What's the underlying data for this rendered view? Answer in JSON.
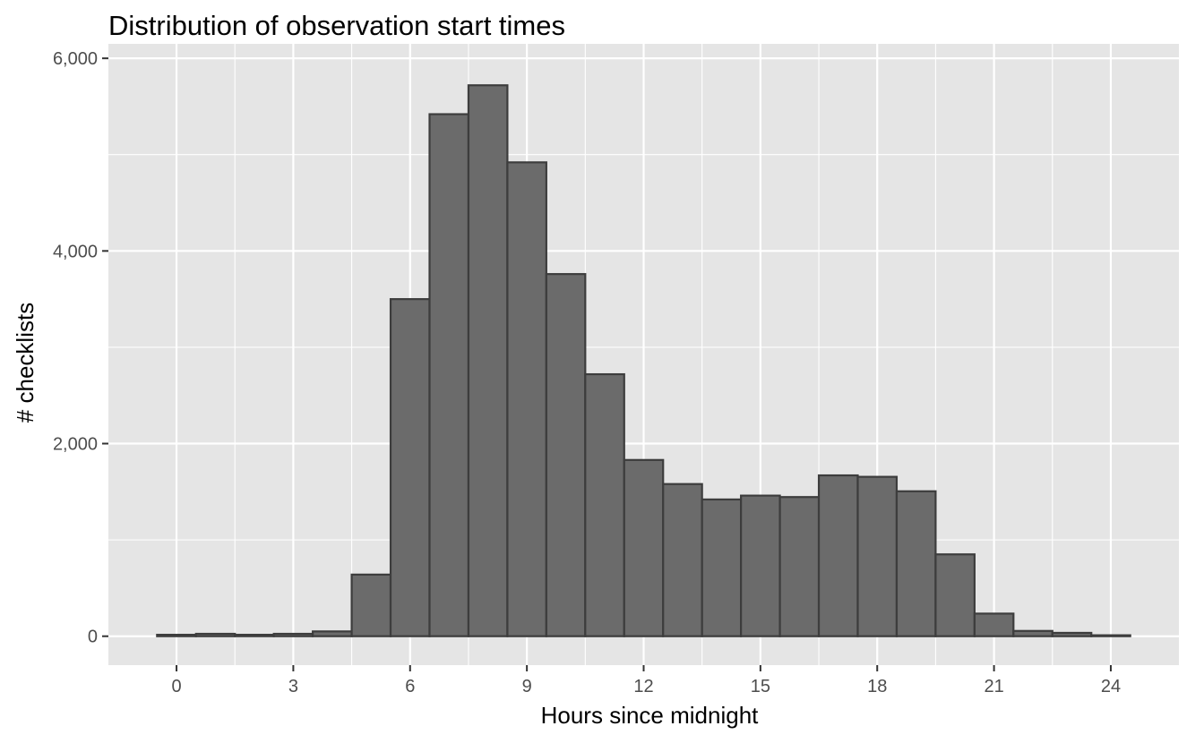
{
  "chart_data": {
    "type": "bar",
    "title": "Distribution of observation start times",
    "xlabel": "Hours since midnight",
    "ylabel": "# checklists",
    "x": [
      0,
      1,
      2,
      3,
      4,
      5,
      6,
      7,
      8,
      9,
      10,
      11,
      12,
      13,
      14,
      15,
      16,
      17,
      18,
      19,
      20,
      21,
      22,
      23,
      24
    ],
    "values": [
      15,
      25,
      15,
      25,
      50,
      640,
      3500,
      5420,
      5720,
      4920,
      3760,
      2720,
      1830,
      1580,
      1420,
      1460,
      1445,
      1670,
      1655,
      1505,
      850,
      235,
      55,
      35,
      10
    ],
    "bin_width": 1,
    "xlim": [
      -1.75,
      25.75
    ],
    "ylim": [
      -300,
      6150
    ],
    "x_ticks": [
      "0",
      "3",
      "6",
      "9",
      "12",
      "15",
      "18",
      "21",
      "24"
    ],
    "x_tick_values": [
      0,
      3,
      6,
      9,
      12,
      15,
      18,
      21,
      24
    ],
    "y_ticks": [
      "0",
      "2,000",
      "4,000",
      "6,000"
    ],
    "y_tick_values": [
      0,
      2000,
      4000,
      6000
    ],
    "y_minor_values": [
      1000,
      3000,
      5000
    ],
    "grid": true,
    "legend": "none",
    "colors": {
      "panel": "#e5e5e5",
      "grid": "#ffffff",
      "bar_fill": "#6b6b6b",
      "bar_stroke": "#3d3d3d",
      "tick": "#333333"
    }
  }
}
